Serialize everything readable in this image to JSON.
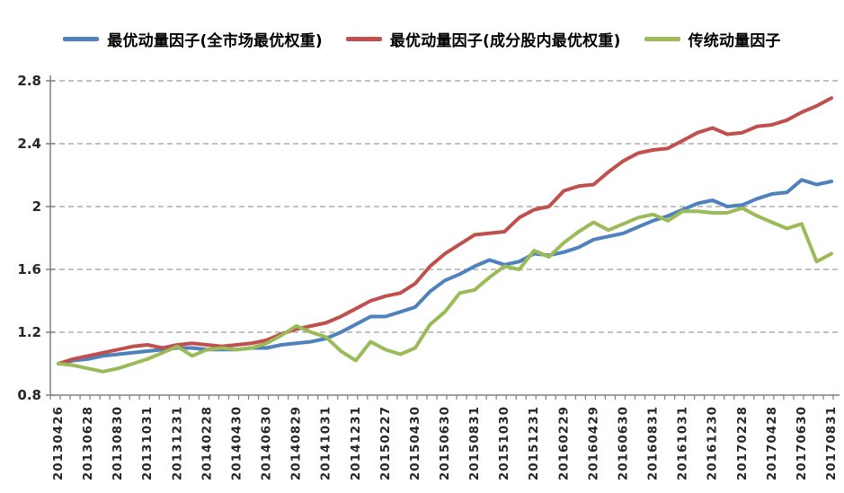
{
  "chart_data": {
    "type": "line",
    "title": "",
    "xlabel": "",
    "ylabel": "",
    "ylim": [
      0.8,
      2.8
    ],
    "y_ticks": [
      "0.8",
      "1.2",
      "1.6",
      "2",
      "2.4",
      "2.8"
    ],
    "grid": "horizontal-dashed",
    "legend_position": "top",
    "n_points": 53,
    "label_every": 2,
    "x_tick_labels": [
      "20130426",
      "20130628",
      "20130830",
      "20131031",
      "20131231",
      "20140228",
      "20140430",
      "20140630",
      "20140829",
      "20141031",
      "20141231",
      "20150227",
      "20150430",
      "20150630",
      "20150831",
      "20151030",
      "20151231",
      "20160229",
      "20160429",
      "20160630",
      "20160831",
      "20161031",
      "20161230",
      "20170228",
      "20170428",
      "20170630",
      "20170831"
    ],
    "series": [
      {
        "name": "最优动量因子(全市场最优权重)",
        "color": "#4F81BD",
        "values": [
          1.0,
          1.02,
          1.03,
          1.05,
          1.06,
          1.07,
          1.08,
          1.09,
          1.1,
          1.1,
          1.09,
          1.09,
          1.09,
          1.1,
          1.1,
          1.12,
          1.13,
          1.14,
          1.16,
          1.2,
          1.25,
          1.3,
          1.3,
          1.33,
          1.36,
          1.46,
          1.53,
          1.57,
          1.62,
          1.66,
          1.63,
          1.65,
          1.7,
          1.69,
          1.71,
          1.74,
          1.79,
          1.81,
          1.83,
          1.87,
          1.91,
          1.94,
          1.98,
          2.02,
          2.04,
          2.0,
          2.01,
          2.05,
          2.08,
          2.09,
          2.17,
          2.14,
          2.16
        ]
      },
      {
        "name": "最优动量因子(成分股内最优权重)",
        "color": "#C0504D",
        "values": [
          1.0,
          1.03,
          1.05,
          1.07,
          1.09,
          1.11,
          1.12,
          1.1,
          1.12,
          1.13,
          1.12,
          1.11,
          1.12,
          1.13,
          1.15,
          1.19,
          1.22,
          1.24,
          1.26,
          1.3,
          1.35,
          1.4,
          1.43,
          1.45,
          1.51,
          1.62,
          1.7,
          1.76,
          1.82,
          1.83,
          1.84,
          1.93,
          1.98,
          2.0,
          2.1,
          2.13,
          2.14,
          2.22,
          2.29,
          2.34,
          2.36,
          2.37,
          2.42,
          2.47,
          2.5,
          2.46,
          2.47,
          2.51,
          2.52,
          2.55,
          2.6,
          2.64,
          2.69
        ]
      },
      {
        "name": "传统动量因子",
        "color": "#9BBB59",
        "values": [
          1.0,
          0.99,
          0.97,
          0.95,
          0.97,
          1.0,
          1.03,
          1.07,
          1.11,
          1.05,
          1.09,
          1.1,
          1.09,
          1.1,
          1.13,
          1.18,
          1.24,
          1.2,
          1.17,
          1.08,
          1.02,
          1.14,
          1.09,
          1.06,
          1.1,
          1.25,
          1.33,
          1.45,
          1.47,
          1.55,
          1.62,
          1.6,
          1.72,
          1.68,
          1.77,
          1.84,
          1.9,
          1.85,
          1.89,
          1.93,
          1.95,
          1.91,
          1.97,
          1.97,
          1.96,
          1.96,
          1.99,
          1.94,
          1.9,
          1.86,
          1.89,
          1.65,
          1.7
        ]
      }
    ],
    "axis_color": "#808080",
    "gridline_color": "#9d9d9d"
  }
}
